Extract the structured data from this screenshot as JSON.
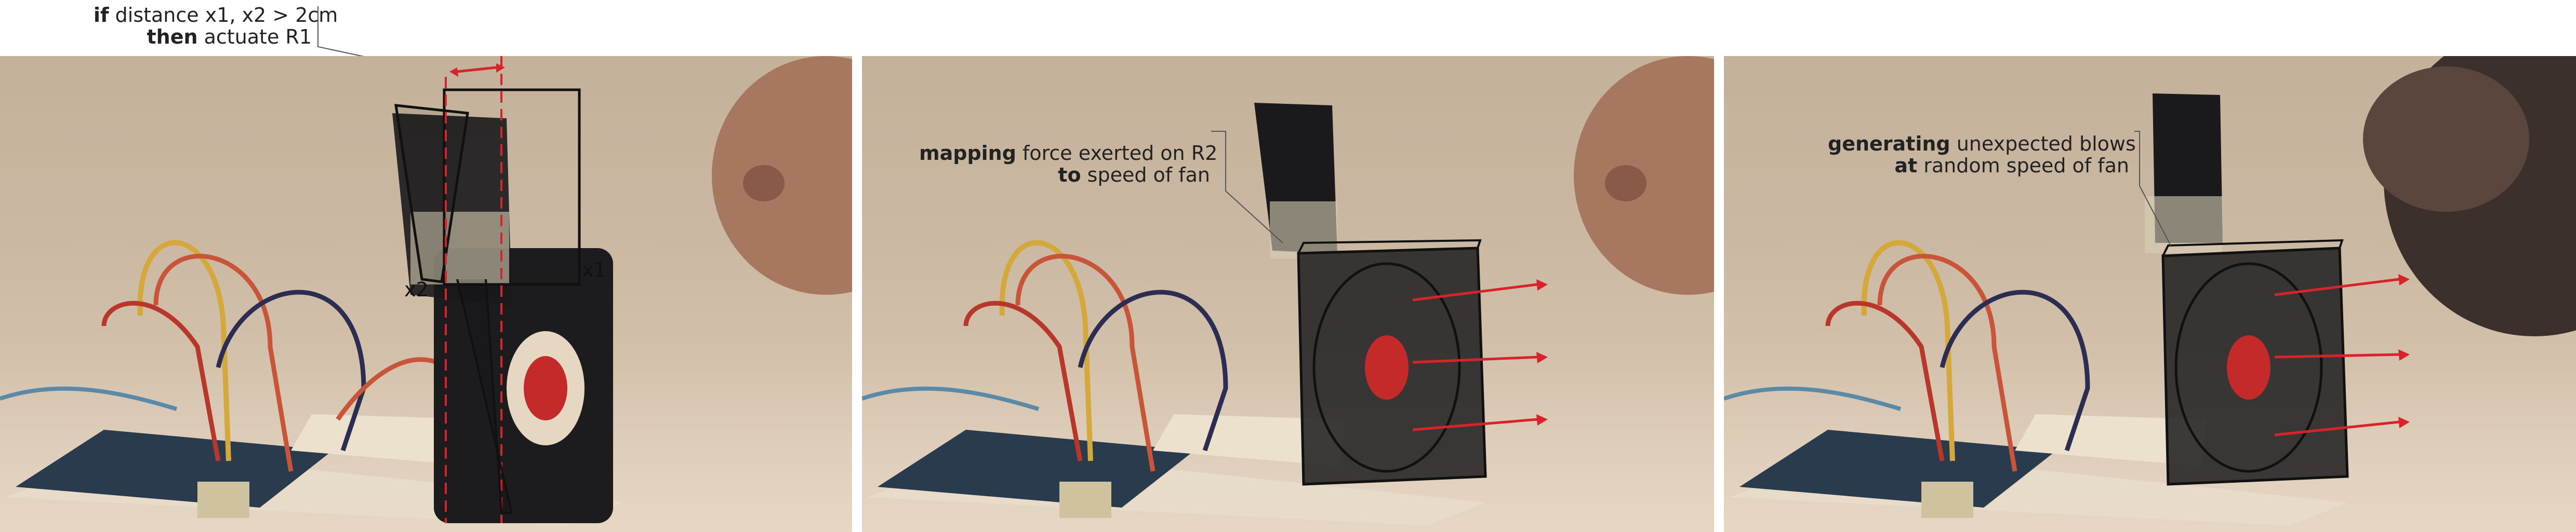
{
  "panels": [
    {
      "caption": {
        "line1_bold": "if",
        "line1_text": " distance x1, x2 > 2cm",
        "line2_bold": "then",
        "line2_text": " actuate R1"
      },
      "labels": {
        "x1": "x1",
        "x2": "x2"
      }
    },
    {
      "caption": {
        "line1_bold": "mapping",
        "line1_text": " force exerted on R2",
        "line2_bold": "to",
        "line2_text": " speed of fan"
      }
    },
    {
      "caption": {
        "line1_bold": "generating",
        "line1_text": " unexpected blows",
        "line2_bold": "at",
        "line2_text": " random speed of fan"
      }
    }
  ],
  "colors": {
    "annotation": "#111111",
    "arrow": "#d8232a",
    "dashed": "#d8232a"
  }
}
